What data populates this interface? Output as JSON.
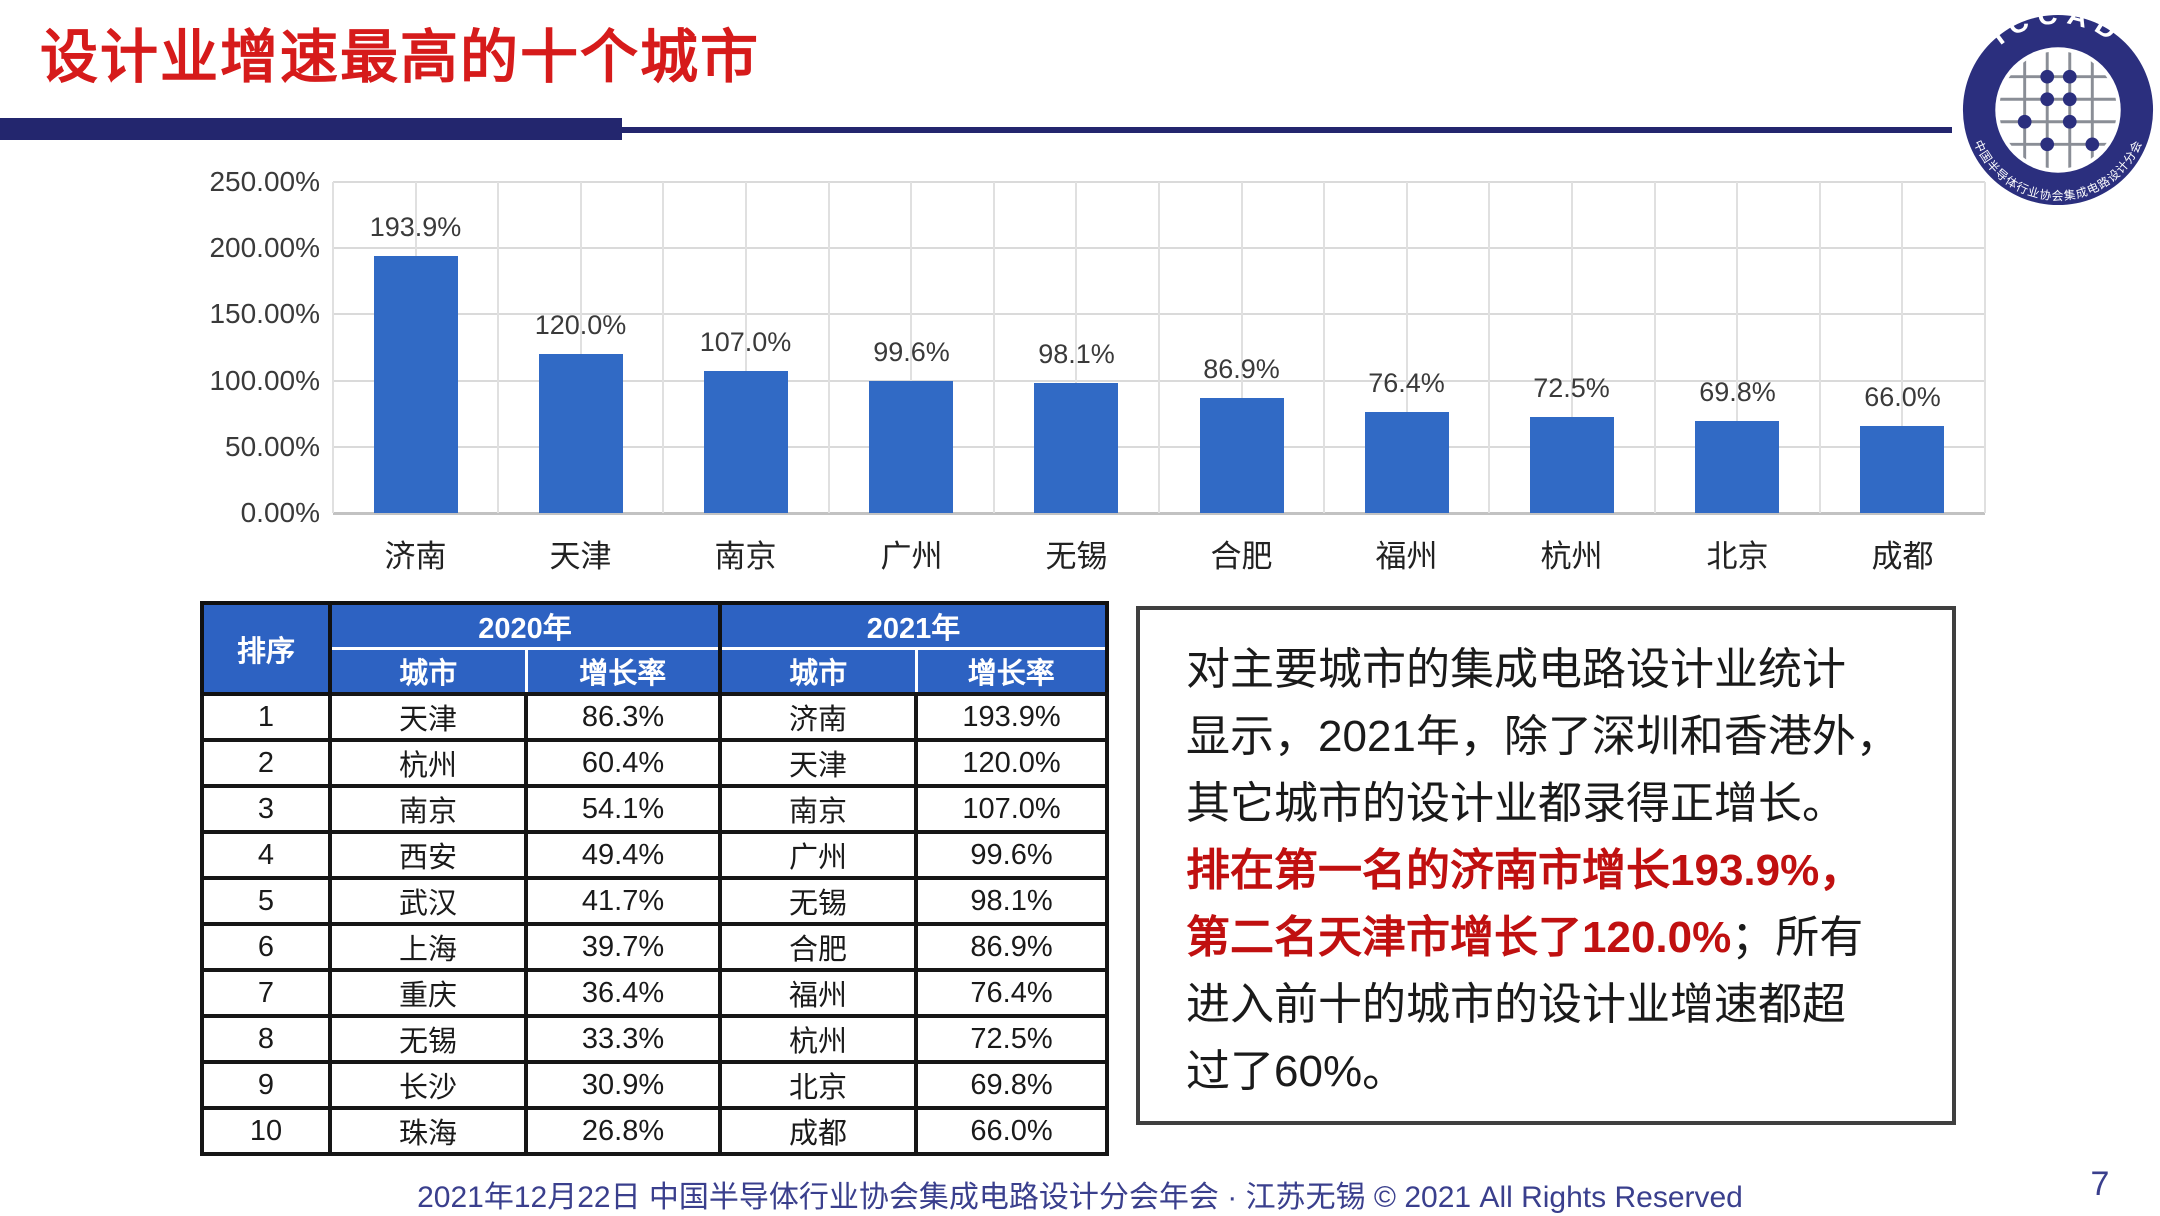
{
  "header": {
    "title": "设计业增速最高的十个城市"
  },
  "logo": {
    "top_text": "ICCAD",
    "bottom_text": "中国半导体行业协会集成电路设计分会"
  },
  "colors": {
    "title_red": "#d61b1b",
    "note_red": "#c01010",
    "bar_blue": "#316ac5",
    "table_header_blue": "#2d62c2",
    "divider_navy": "#23266e",
    "footer_navy": "#3a3f8d"
  },
  "chart_data": {
    "type": "bar",
    "title": "",
    "xlabel": "",
    "ylabel": "",
    "categories": [
      "济南",
      "天津",
      "南京",
      "广州",
      "无锡",
      "合肥",
      "福州",
      "杭州",
      "北京",
      "成都"
    ],
    "values": [
      193.9,
      120.0,
      107.0,
      99.6,
      98.1,
      86.9,
      76.4,
      72.5,
      69.8,
      66.0
    ],
    "data_labels": [
      "193.9%",
      "120.0%",
      "107.0%",
      "99.6%",
      "98.1%",
      "86.9%",
      "76.4%",
      "72.5%",
      "69.8%",
      "66.0%"
    ],
    "y_ticks": [
      "250.00%",
      "200.00%",
      "150.00%",
      "100.00%",
      "50.00%",
      "0.00%"
    ],
    "ylim": [
      0,
      250
    ],
    "grid": true,
    "legend": false,
    "bar_color": "#316ac5"
  },
  "table": {
    "col_rank": "排序",
    "group_2020": "2020年",
    "group_2021": "2021年",
    "col_city_2020": "城市",
    "col_rate_2020": "增长率",
    "col_city_2021": "城市",
    "col_rate_2021": "增长率",
    "rows": [
      [
        "1",
        "天津",
        "86.3%",
        "济南",
        "193.9%"
      ],
      [
        "2",
        "杭州",
        "60.4%",
        "天津",
        "120.0%"
      ],
      [
        "3",
        "南京",
        "54.1%",
        "南京",
        "107.0%"
      ],
      [
        "4",
        "西安",
        "49.4%",
        "广州",
        "99.6%"
      ],
      [
        "5",
        "武汉",
        "41.7%",
        "无锡",
        "98.1%"
      ],
      [
        "6",
        "上海",
        "39.7%",
        "合肥",
        "86.9%"
      ],
      [
        "7",
        "重庆",
        "36.4%",
        "福州",
        "76.4%"
      ],
      [
        "8",
        "无锡",
        "33.3%",
        "杭州",
        "72.5%"
      ],
      [
        "9",
        "长沙",
        "30.9%",
        "北京",
        "69.8%"
      ],
      [
        "10",
        "珠海",
        "26.8%",
        "成都",
        "66.0%"
      ]
    ]
  },
  "note": {
    "lines": [
      [
        {
          "t": "对主要城市的集成电路设计业统计",
          "c": "k"
        }
      ],
      [
        {
          "t": "显示，2021年，除了深圳和香港外，",
          "c": "k"
        }
      ],
      [
        {
          "t": "其它城市的设计业都录得正增长。",
          "c": "k"
        }
      ],
      [
        {
          "t": "排在第一名的济南市增长193.9%，",
          "c": "r"
        }
      ],
      [
        {
          "t": "第二名天津市增长了120.0%",
          "c": "r"
        },
        {
          "t": "；所有",
          "c": "k"
        }
      ],
      [
        {
          "t": "进入前十的城市的设计业增速都超",
          "c": "k"
        }
      ],
      [
        {
          "t": "过了60%。",
          "c": "k"
        }
      ]
    ]
  },
  "footer": {
    "text": "2021年12月22日 中国半导体行业协会集成电路设计分会年会 · 江苏无锡 © 2021 All Rights Reserved",
    "page_number": "7"
  }
}
